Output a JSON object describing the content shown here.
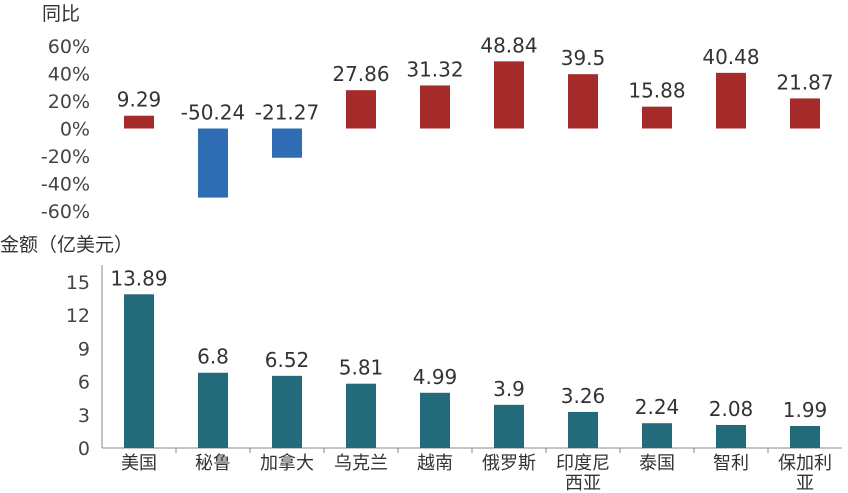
{
  "chart_data": [
    {
      "type": "bar",
      "ylabel": "同比",
      "categories": [
        "美国",
        "秘鲁",
        "加拿大",
        "乌克兰",
        "越南",
        "俄罗斯",
        "印度尼西亚",
        "泰国",
        "智利",
        "保加利亚"
      ],
      "values": [
        9.29,
        -50.24,
        -21.27,
        27.86,
        31.32,
        48.84,
        39.5,
        15.88,
        40.48,
        21.87
      ],
      "value_labels": [
        "9.29",
        "-50.24",
        "-21.27",
        "27.86",
        "31.32",
        "48.84",
        "39.5",
        "15.88",
        "40.48",
        "21.87"
      ],
      "ylim": [
        -60,
        60
      ],
      "yticks": [
        "-60%",
        "-40%",
        "-20%",
        "0%",
        "20%",
        "40%",
        "60%"
      ],
      "positive_color": "#a52a2a",
      "negative_color": "#2e6db4",
      "grid": false
    },
    {
      "type": "bar",
      "ylabel": "金额（亿美元）",
      "categories": [
        "美国",
        "秘鲁",
        "加拿大",
        "乌克兰",
        "越南",
        "俄罗斯",
        "印度尼西亚",
        "泰国",
        "智利",
        "保加利亚"
      ],
      "category_labels": [
        [
          "美国"
        ],
        [
          "秘鲁"
        ],
        [
          "加拿大"
        ],
        [
          "乌克兰"
        ],
        [
          "越南"
        ],
        [
          "俄罗斯"
        ],
        [
          "印度尼",
          "西亚"
        ],
        [
          "泰国"
        ],
        [
          "智利"
        ],
        [
          "保加利",
          "亚"
        ]
      ],
      "values": [
        13.89,
        6.8,
        6.52,
        5.81,
        4.99,
        3.9,
        3.26,
        2.24,
        2.08,
        1.99
      ],
      "value_labels": [
        "13.89",
        "6.8",
        "6.52",
        "5.81",
        "4.99",
        "3.9",
        "3.26",
        "2.24",
        "2.08",
        "1.99"
      ],
      "ylim": [
        0,
        15
      ],
      "yticks": [
        "0",
        "3",
        "6",
        "9",
        "12",
        "15"
      ],
      "bar_color": "#236a7a",
      "grid": false
    }
  ]
}
